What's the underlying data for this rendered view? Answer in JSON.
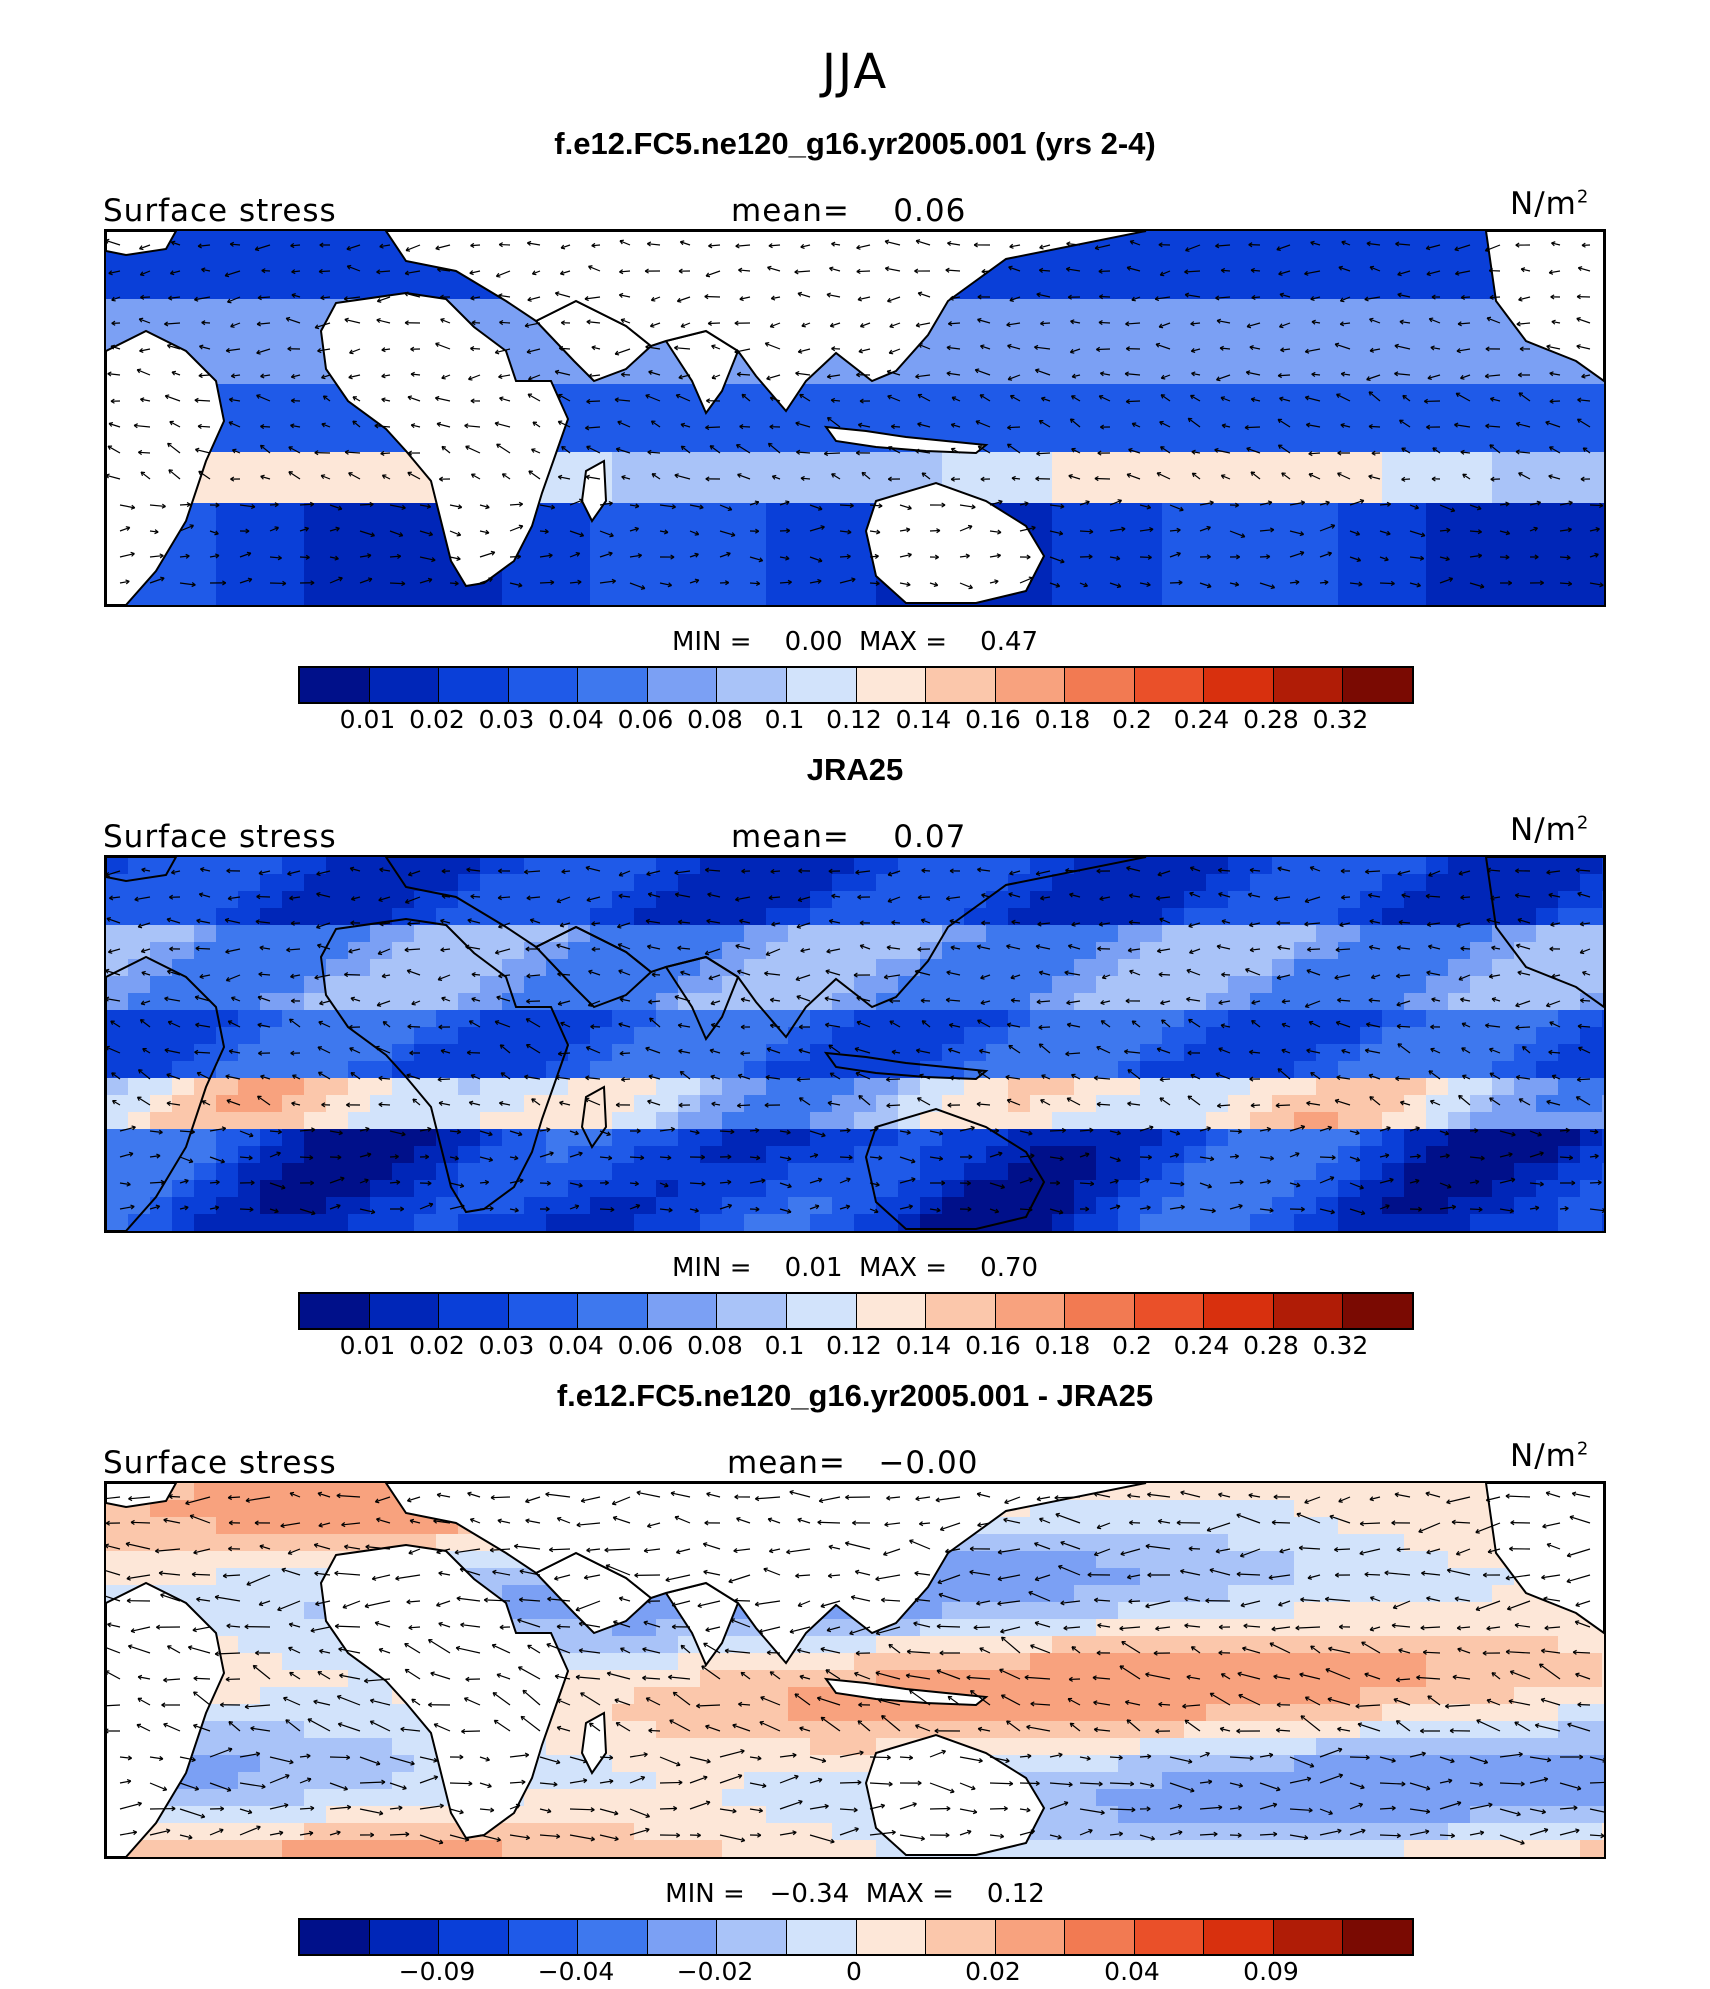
{
  "figure": {
    "title": "JJA"
  },
  "colors": {
    "land": "#ffffff",
    "coast": "#000000",
    "vector": "#000000"
  },
  "icons": {
    "vector": "arrow-icon"
  },
  "panels": [
    {
      "title": "f.e12.FC5.ne120_g16.yr2005.001 (yrs 2-4)",
      "left_label": "Surface stress",
      "mean_text": "mean=    0.06",
      "unit_text": "N/m",
      "unit_sup": "2",
      "minmax_text": "MIN =    0.00  MAX =    0.47",
      "colorbar": {
        "colors": [
          "#00108a",
          "#0026b8",
          "#0a3fd8",
          "#1f5ae8",
          "#3e78ee",
          "#7ba0f4",
          "#a9c3f8",
          "#d2e3fb",
          "#fde7d8",
          "#fbc7ab",
          "#f8a27e",
          "#f27a52",
          "#ea5029",
          "#d8300e",
          "#b01c06",
          "#7a0a02"
        ],
        "tick_labels": [
          "0.01",
          "0.02",
          "0.03",
          "0.04",
          "0.06",
          "0.08",
          "0.1",
          "0.12",
          "0.14",
          "0.16",
          "0.18",
          "0.2",
          "0.24",
          "0.28",
          "0.32"
        ]
      },
      "map": {
        "land_masked": true,
        "style": "model"
      }
    },
    {
      "title": "JRA25",
      "left_label": "Surface stress",
      "mean_text": "mean=    0.07",
      "unit_text": "N/m",
      "unit_sup": "2",
      "minmax_text": "MIN =    0.01  MAX =    0.70",
      "colorbar": {
        "colors": [
          "#00108a",
          "#0026b8",
          "#0a3fd8",
          "#1f5ae8",
          "#3e78ee",
          "#7ba0f4",
          "#a9c3f8",
          "#d2e3fb",
          "#fde7d8",
          "#fbc7ab",
          "#f8a27e",
          "#f27a52",
          "#ea5029",
          "#d8300e",
          "#b01c06",
          "#7a0a02"
        ],
        "tick_labels": [
          "0.01",
          "0.02",
          "0.03",
          "0.04",
          "0.06",
          "0.08",
          "0.1",
          "0.12",
          "0.14",
          "0.16",
          "0.18",
          "0.2",
          "0.24",
          "0.28",
          "0.32"
        ]
      },
      "map": {
        "land_masked": false,
        "style": "obs"
      }
    },
    {
      "title": "f.e12.FC5.ne120_g16.yr2005.001 - JRA25",
      "left_label": "Surface stress",
      "mean_text": "mean=   −0.00",
      "unit_text": "N/m",
      "unit_sup": "2",
      "minmax_text": "MIN =   −0.34  MAX =    0.12",
      "colorbar": {
        "colors": [
          "#00108a",
          "#0026b8",
          "#0a3fd8",
          "#1f5ae8",
          "#3e78ee",
          "#7ba0f4",
          "#a9c3f8",
          "#d2e3fb",
          "#fde7d8",
          "#fbc7ab",
          "#f8a27e",
          "#f27a52",
          "#ea5029",
          "#d8300e",
          "#b01c06",
          "#7a0a02"
        ],
        "tick_labels": [
          "−0.09",
          "−0.04",
          "−0.02",
          "0",
          "0.02",
          "0.04",
          "0.09"
        ]
      },
      "map": {
        "land_masked": true,
        "style": "diff"
      }
    }
  ]
}
